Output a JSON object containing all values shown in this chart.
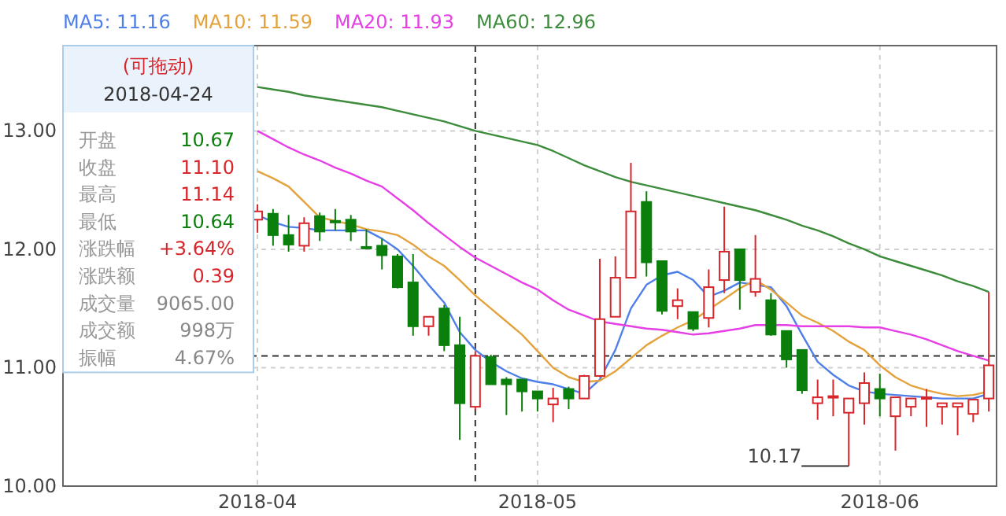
{
  "chart_data": {
    "type": "candlestick",
    "categories": [
      null,
      null,
      null,
      null,
      null,
      null,
      null,
      null,
      null,
      null,
      null,
      null,
      "2018-04",
      null,
      null,
      null,
      null,
      null,
      null,
      null,
      null,
      null,
      null,
      null,
      null,
      null,
      null,
      null,
      null,
      null,
      "2018-05",
      null,
      null,
      null,
      null,
      null,
      null,
      null,
      null,
      null,
      null,
      null,
      null,
      null,
      null,
      null,
      null,
      null,
      null,
      null,
      null,
      null,
      "2018-06",
      null,
      null,
      null,
      null,
      null,
      null,
      null
    ],
    "series": [
      {
        "colors": [
          null,
          null,
          null,
          null,
          null,
          null,
          null,
          null,
          null,
          null,
          null,
          null,
          "#d7262b",
          "#0b7f0b",
          "#0b7f0b",
          "#d7262b",
          "#0b7f0b",
          "#0b7f0b",
          "#0b7f0b",
          "#0b7f0b",
          "#0b7f0b",
          "#0b7f0b",
          "#0b7f0b",
          "#d7262b",
          "#0b7f0b",
          "#0b7f0b",
          "#d7262b",
          "#0b7f0b",
          "#0b7f0b",
          "#0b7f0b",
          "#0b7f0b",
          "#d7262b",
          "#0b7f0b",
          "#d7262b",
          "#d7262b",
          "#d7262b",
          "#d7262b",
          "#0b7f0b",
          "#0b7f0b",
          "#d7262b",
          "#0b7f0b",
          "#d7262b",
          "#d7262b",
          "#0b7f0b",
          "#d7262b",
          "#0b7f0b",
          "#0b7f0b",
          "#0b7f0b",
          "#d7262b",
          "#d7262b",
          "#d7262b",
          "#d7262b",
          "#0b7f0b",
          "#d7262b",
          "#d7262b",
          "#d7262b",
          "#d7262b",
          "#d7262b",
          "#d7262b",
          "#d7262b"
        ],
        "ohlc": [
          null,
          null,
          null,
          null,
          null,
          null,
          null,
          null,
          null,
          null,
          null,
          null,
          [
            12.25,
            12.38,
            12.14,
            12.32
          ],
          [
            12.3,
            12.34,
            12.03,
            12.12
          ],
          [
            12.12,
            12.29,
            11.98,
            12.04
          ],
          [
            12.03,
            12.27,
            11.98,
            12.22
          ],
          [
            12.28,
            12.31,
            12.07,
            12.15
          ],
          [
            12.24,
            12.34,
            12.16,
            12.23
          ],
          [
            12.25,
            12.29,
            12.07,
            12.15
          ],
          [
            12.02,
            12.17,
            12.0,
            12.01
          ],
          [
            12.03,
            12.09,
            11.83,
            11.95
          ],
          [
            11.94,
            11.96,
            11.67,
            11.68
          ],
          [
            11.72,
            11.96,
            11.27,
            11.35
          ],
          [
            11.35,
            11.43,
            11.27,
            11.43
          ],
          [
            11.5,
            11.53,
            11.14,
            11.19
          ],
          [
            11.19,
            11.43,
            10.39,
            10.7
          ],
          [
            10.67,
            11.14,
            10.64,
            11.1
          ],
          [
            11.09,
            11.11,
            10.86,
            10.86
          ],
          [
            10.9,
            10.92,
            10.6,
            10.86
          ],
          [
            10.9,
            10.9,
            10.63,
            10.8
          ],
          [
            10.8,
            10.8,
            10.63,
            10.74
          ],
          [
            10.69,
            10.83,
            10.54,
            10.74
          ],
          [
            10.82,
            10.84,
            10.65,
            10.74
          ],
          [
            10.74,
            10.94,
            10.74,
            10.93
          ],
          [
            10.93,
            11.92,
            10.92,
            11.41
          ],
          [
            11.43,
            11.94,
            11.43,
            11.76
          ],
          [
            11.76,
            12.73,
            11.76,
            12.32
          ],
          [
            12.4,
            12.49,
            11.77,
            11.89
          ],
          [
            11.9,
            11.9,
            11.45,
            11.48
          ],
          [
            11.52,
            11.67,
            11.41,
            11.57
          ],
          [
            11.47,
            11.47,
            11.31,
            11.33
          ],
          [
            11.42,
            11.83,
            11.34,
            11.68
          ],
          [
            11.74,
            12.36,
            11.63,
            11.98
          ],
          [
            12.0,
            12.0,
            11.49,
            11.74
          ],
          [
            11.64,
            12.12,
            11.6,
            11.75
          ],
          [
            11.57,
            11.63,
            11.27,
            11.28
          ],
          [
            11.31,
            11.31,
            11.0,
            11.07
          ],
          [
            11.15,
            11.15,
            10.78,
            10.81
          ],
          [
            10.7,
            10.9,
            10.56,
            10.75
          ],
          [
            10.75,
            10.9,
            10.59,
            10.76
          ],
          [
            10.62,
            10.74,
            10.17,
            10.74
          ],
          [
            10.7,
            10.96,
            10.52,
            10.87
          ],
          [
            10.82,
            10.95,
            10.59,
            10.74
          ],
          [
            10.59,
            10.75,
            10.3,
            10.75
          ],
          [
            10.67,
            10.74,
            10.59,
            10.74
          ],
          [
            10.74,
            10.82,
            10.5,
            10.75
          ],
          [
            10.67,
            10.7,
            10.52,
            10.7
          ],
          [
            10.67,
            10.7,
            10.43,
            10.7
          ],
          [
            10.61,
            10.73,
            10.54,
            10.73
          ],
          [
            10.74,
            11.64,
            10.63,
            11.02
          ]
        ]
      },
      {
        "name": "MA5: 11.16",
        "type": "line",
        "color": "#4f7fe8",
        "values": [
          null,
          null,
          null,
          null,
          null,
          null,
          null,
          null,
          null,
          null,
          null,
          null,
          12.29,
          12.23,
          12.19,
          12.18,
          12.16,
          12.16,
          12.16,
          12.16,
          12.09,
          12.0,
          11.86,
          11.7,
          11.55,
          11.3,
          11.15,
          11.05,
          10.97,
          10.91,
          10.88,
          10.86,
          10.82,
          10.78,
          10.9,
          11.15,
          11.5,
          11.7,
          11.78,
          11.81,
          11.74,
          11.6,
          11.65,
          11.72,
          11.7,
          11.68,
          11.52,
          11.28,
          11.05,
          10.94,
          10.85,
          10.8,
          10.78,
          10.77,
          10.76,
          10.75,
          10.74,
          10.74,
          10.74,
          10.78
        ]
      },
      {
        "name": "MA10: 11.59",
        "type": "line",
        "color": "#e3a23c",
        "values": [
          null,
          null,
          null,
          null,
          null,
          null,
          null,
          null,
          null,
          null,
          null,
          null,
          12.66,
          12.6,
          12.53,
          12.4,
          12.27,
          12.24,
          12.21,
          12.17,
          12.15,
          12.12,
          12.04,
          11.94,
          11.86,
          11.74,
          11.61,
          11.5,
          11.39,
          11.28,
          11.14,
          11.0,
          10.92,
          10.88,
          10.89,
          10.97,
          11.08,
          11.19,
          11.27,
          11.34,
          11.4,
          11.49,
          11.58,
          11.67,
          11.74,
          11.66,
          11.55,
          11.44,
          11.38,
          11.31,
          11.22,
          11.15,
          11.02,
          10.92,
          10.85,
          10.81,
          10.78,
          10.76,
          10.77,
          10.8
        ]
      },
      {
        "name": "MA20: 11.93",
        "type": "line",
        "color": "#e63fe6",
        "values": [
          null,
          null,
          null,
          null,
          null,
          null,
          null,
          null,
          null,
          null,
          null,
          null,
          13.0,
          12.93,
          12.86,
          12.8,
          12.75,
          12.69,
          12.64,
          12.58,
          12.53,
          12.43,
          12.33,
          12.22,
          12.12,
          12.02,
          11.93,
          11.86,
          11.79,
          11.72,
          11.66,
          11.57,
          11.49,
          11.44,
          11.39,
          11.37,
          11.35,
          11.33,
          11.32,
          11.3,
          11.28,
          11.29,
          11.31,
          11.33,
          11.36,
          11.36,
          11.36,
          11.35,
          11.35,
          11.35,
          11.35,
          11.34,
          11.34,
          11.31,
          11.28,
          11.24,
          11.19,
          11.14,
          11.1,
          11.06
        ]
      },
      {
        "name": "MA60: 12.96",
        "type": "line",
        "color": "#3c8c3c",
        "values": [
          null,
          null,
          null,
          null,
          null,
          null,
          null,
          null,
          null,
          null,
          null,
          null,
          13.37,
          13.35,
          13.33,
          13.3,
          13.28,
          13.26,
          13.24,
          13.22,
          13.2,
          13.17,
          13.14,
          13.11,
          13.08,
          13.04,
          13.0,
          12.97,
          12.94,
          12.91,
          12.88,
          12.83,
          12.77,
          12.71,
          12.66,
          12.61,
          12.57,
          12.54,
          12.51,
          12.48,
          12.45,
          12.42,
          12.39,
          12.36,
          12.33,
          12.29,
          12.25,
          12.2,
          12.16,
          12.11,
          12.05,
          12.0,
          11.94,
          11.9,
          11.86,
          11.82,
          11.78,
          11.73,
          11.69,
          11.64
        ]
      }
    ],
    "ylim": [
      10,
      13.72
    ],
    "yticks": [
      {
        "value": 10,
        "label": "10.00"
      },
      {
        "value": 11,
        "label": "11.00"
      },
      {
        "value": 12,
        "label": "12.00"
      },
      {
        "value": 13,
        "label": "13.00"
      }
    ],
    "grid": true,
    "legend": "top",
    "ref_lines": [
      {
        "axis": "y",
        "value": 11.1,
        "line_style": "dashed",
        "color": "#333333"
      }
    ],
    "annotations": [
      "(可拖动)",
      "2018-04-24",
      "开盘",
      "10.67",
      "收盘",
      "11.10",
      "最高",
      "11.14",
      "最低",
      "10.64",
      "涨跌幅",
      "+3.64%",
      "涨跌额",
      "0.39",
      "成交量",
      "9065.00",
      "成交额",
      "998万",
      "振幅",
      "4.67%",
      "10.17"
    ]
  }
}
